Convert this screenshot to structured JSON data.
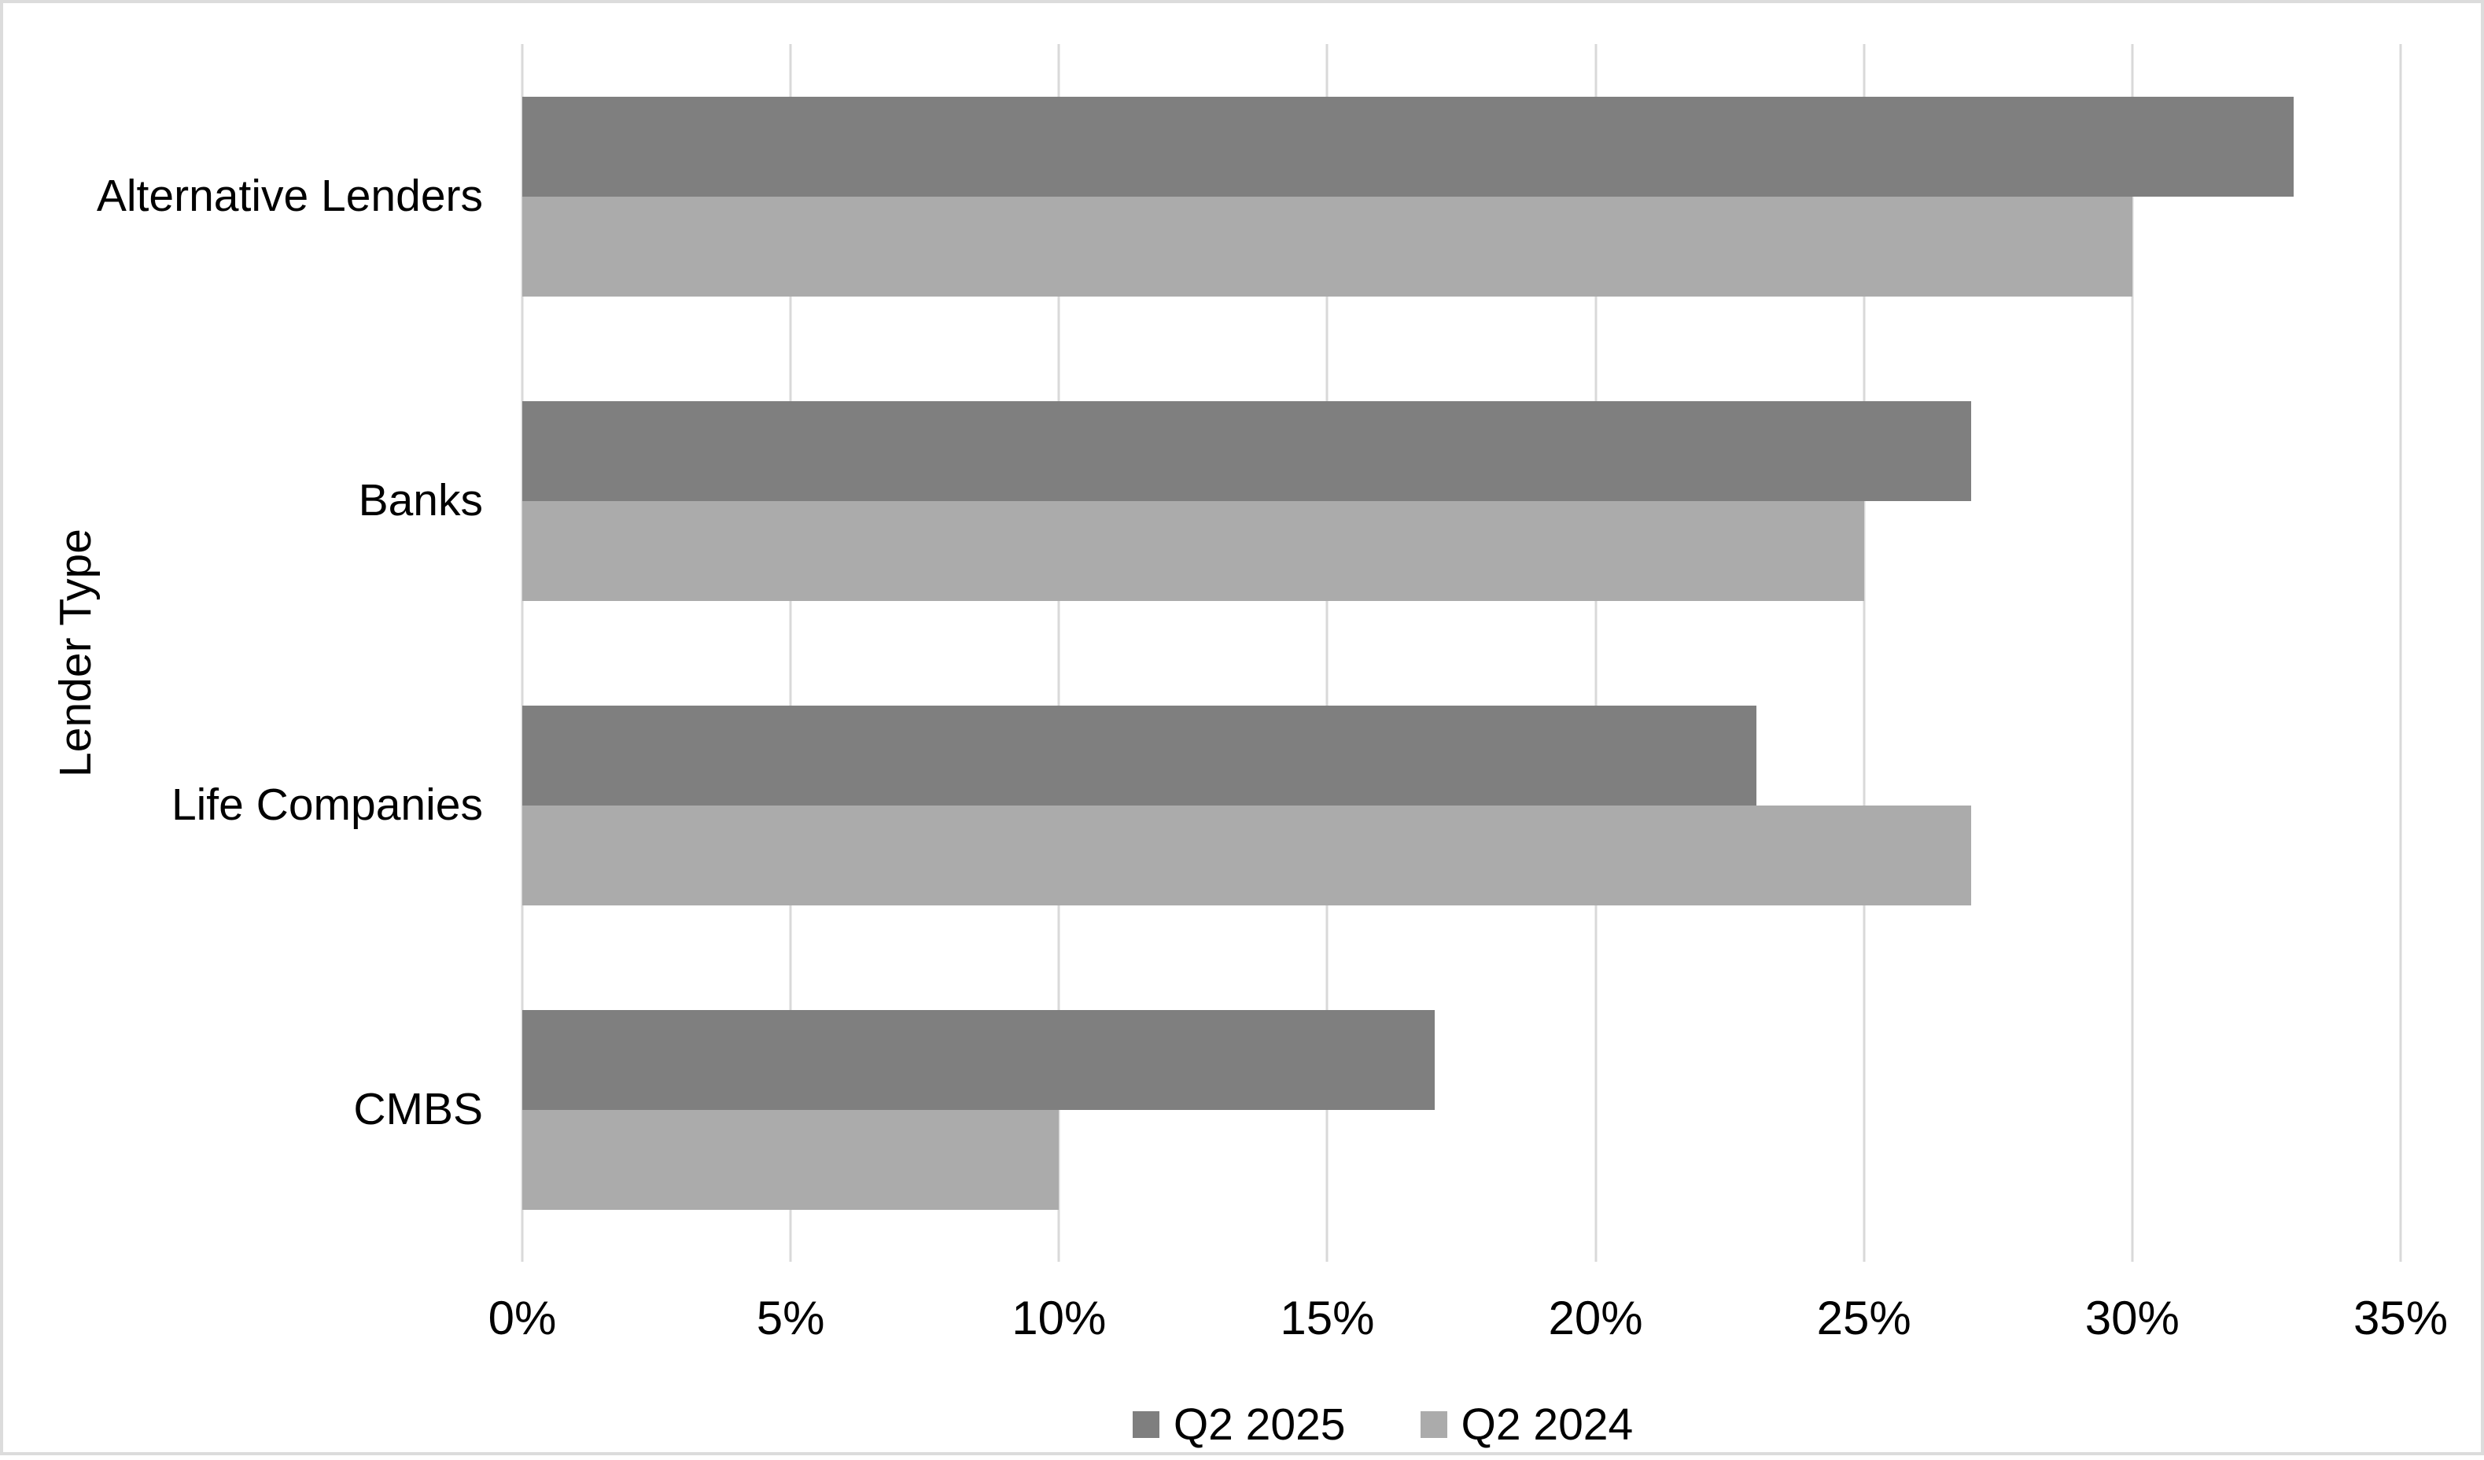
{
  "chart_data": {
    "type": "bar",
    "orientation": "horizontal",
    "categories": [
      "Alternative Lenders",
      "Banks",
      "Life Companies",
      "CMBS"
    ],
    "series": [
      {
        "name": "Q2 2025",
        "color": "#7f7f7f",
        "values": [
          33,
          27,
          23,
          17
        ]
      },
      {
        "name": "Q2 2024",
        "color": "#ababab",
        "values": [
          30,
          25,
          27,
          10
        ]
      }
    ],
    "value_unit": "%",
    "ylabel": "Lender Type",
    "xlabel": "",
    "xlim": [
      0,
      35
    ],
    "x_ticks": [
      "0%",
      "5%",
      "10%",
      "15%",
      "20%",
      "25%",
      "30%",
      "35%"
    ],
    "grid": true,
    "legend_position": "bottom",
    "colors": {
      "gridline": "#d9d9d9",
      "frame": "#dcdcdc",
      "text": "#000000",
      "background": "#ffffff"
    }
  }
}
